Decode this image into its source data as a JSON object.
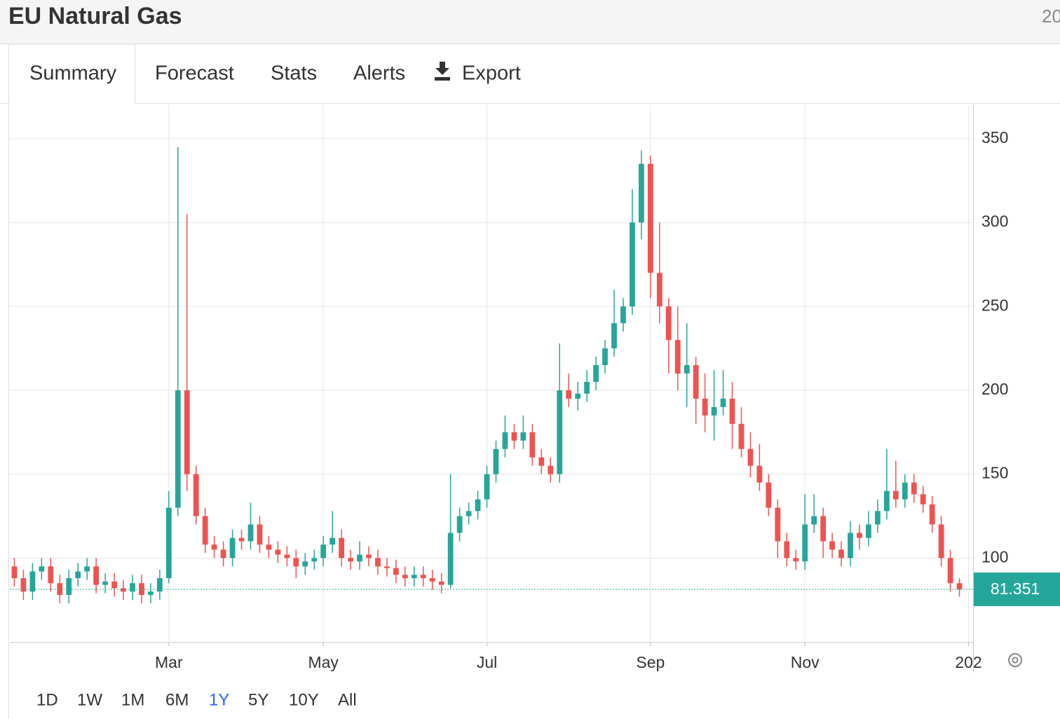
{
  "header": {
    "title": "EU Natural Gas",
    "right_text": "20"
  },
  "tabs": [
    "Summary",
    "Forecast",
    "Stats",
    "Alerts",
    "Export"
  ],
  "ranges": [
    "1D",
    "1W",
    "1M",
    "6M",
    "1Y",
    "5Y",
    "10Y",
    "All"
  ],
  "selected_range": "1Y",
  "chart_data": {
    "type": "candlestick",
    "categories": [
      null,
      null,
      null,
      null,
      null,
      null,
      null,
      null,
      null,
      null,
      null,
      null,
      null,
      null,
      null,
      null,
      null,
      "Mar",
      null,
      null,
      null,
      null,
      null,
      null,
      null,
      null,
      null,
      null,
      null,
      null,
      null,
      null,
      null,
      null,
      "May",
      null,
      null,
      null,
      null,
      null,
      null,
      null,
      null,
      null,
      null,
      null,
      null,
      null,
      null,
      null,
      null,
      null,
      "Jul",
      null,
      null,
      null,
      null,
      null,
      null,
      null,
      null,
      null,
      null,
      null,
      null,
      null,
      null,
      null,
      null,
      null,
      "Sep",
      null,
      null,
      null,
      null,
      null,
      null,
      null,
      null,
      null,
      null,
      null,
      null,
      null,
      null,
      null,
      null,
      "Nov",
      null,
      null,
      null,
      null,
      null,
      null,
      null,
      null,
      null,
      null,
      null,
      null,
      null,
      null,
      null,
      null,
      null,
      "202"
    ],
    "open": [
      95,
      88,
      80,
      92,
      95,
      85,
      78,
      88,
      92,
      95,
      84,
      86,
      82,
      80,
      85,
      78,
      80,
      88,
      130,
      200,
      150,
      125,
      108,
      105,
      100,
      112,
      110,
      120,
      108,
      105,
      102,
      100,
      95,
      98,
      100,
      108,
      112,
      100,
      98,
      102,
      100,
      95,
      94,
      90,
      88,
      90,
      88,
      86,
      84,
      115,
      125,
      128,
      135,
      150,
      165,
      175,
      170,
      175,
      160,
      155,
      150,
      200,
      195,
      198,
      205,
      215,
      225,
      240,
      250,
      300,
      335,
      270,
      250,
      230,
      210,
      215,
      195,
      185,
      190,
      195,
      180,
      165,
      155,
      145,
      130,
      110,
      100,
      98,
      120,
      125,
      110,
      105,
      100,
      115,
      112,
      120,
      128,
      140,
      135,
      145,
      138,
      132,
      120,
      100,
      85,
      null
    ],
    "high": [
      100,
      93,
      97,
      100,
      100,
      90,
      93,
      97,
      100,
      100,
      91,
      91,
      87,
      90,
      90,
      85,
      93,
      140,
      345,
      305,
      155,
      130,
      113,
      110,
      117,
      117,
      133,
      125,
      113,
      110,
      107,
      105,
      103,
      105,
      113,
      128,
      117,
      105,
      110,
      107,
      105,
      100,
      99,
      95,
      95,
      95,
      93,
      91,
      150,
      130,
      133,
      140,
      155,
      170,
      185,
      180,
      185,
      180,
      165,
      160,
      228,
      210,
      205,
      212,
      220,
      230,
      260,
      255,
      320,
      343,
      340,
      300,
      255,
      250,
      240,
      220,
      210,
      212,
      212,
      205,
      190,
      175,
      168,
      150,
      135,
      115,
      105,
      138,
      138,
      130,
      115,
      110,
      122,
      120,
      128,
      135,
      165,
      158,
      150,
      150,
      143,
      137,
      125,
      105,
      88,
      null
    ],
    "low": [
      83,
      75,
      75,
      87,
      80,
      73,
      73,
      83,
      87,
      79,
      79,
      77,
      75,
      75,
      73,
      73,
      75,
      85,
      125,
      140,
      120,
      103,
      100,
      95,
      95,
      105,
      105,
      103,
      100,
      97,
      95,
      88,
      90,
      93,
      95,
      103,
      95,
      93,
      93,
      95,
      90,
      89,
      85,
      83,
      83,
      83,
      81,
      79,
      82,
      110,
      120,
      123,
      130,
      145,
      160,
      165,
      165,
      155,
      150,
      145,
      145,
      190,
      188,
      193,
      200,
      210,
      220,
      235,
      245,
      290,
      255,
      240,
      210,
      200,
      190,
      180,
      175,
      170,
      185,
      165,
      160,
      148,
      140,
      125,
      100,
      95,
      93,
      93,
      115,
      100,
      100,
      95,
      95,
      105,
      107,
      115,
      123,
      130,
      130,
      133,
      127,
      115,
      95,
      80,
      77,
      null
    ],
    "close": [
      88,
      80,
      92,
      95,
      85,
      78,
      88,
      92,
      95,
      84,
      86,
      82,
      80,
      85,
      78,
      80,
      88,
      130,
      200,
      150,
      125,
      108,
      105,
      100,
      112,
      110,
      120,
      108,
      105,
      102,
      100,
      95,
      98,
      100,
      108,
      112,
      100,
      98,
      102,
      100,
      95,
      94,
      90,
      88,
      90,
      88,
      86,
      84,
      115,
      125,
      128,
      135,
      150,
      165,
      175,
      170,
      175,
      160,
      155,
      150,
      200,
      195,
      198,
      205,
      215,
      225,
      240,
      250,
      300,
      335,
      270,
      250,
      230,
      210,
      215,
      195,
      185,
      190,
      195,
      180,
      165,
      155,
      145,
      130,
      110,
      100,
      98,
      120,
      125,
      110,
      105,
      100,
      115,
      112,
      120,
      128,
      140,
      135,
      145,
      138,
      132,
      120,
      100,
      85,
      81.351,
      null
    ],
    "up_color": "#26a69a",
    "down_color": "#ef5350",
    "last_price": 81.351,
    "ylim": [
      50,
      370
    ],
    "yticks": [
      100,
      150,
      200,
      250,
      300,
      350
    ],
    "grid": true
  }
}
